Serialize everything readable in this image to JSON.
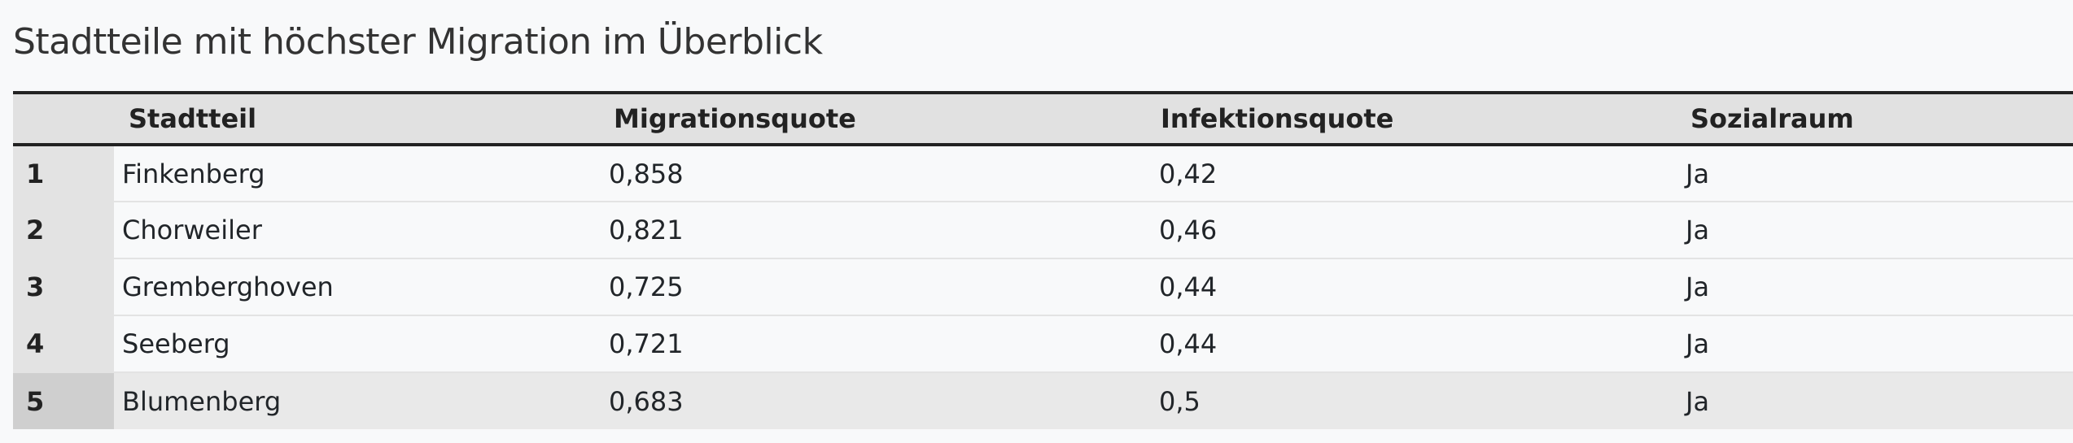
{
  "title": "Stadtteile mit höchster Migration im Überblick",
  "table": {
    "headers": [
      "",
      "Stadtteil",
      "Migrationsquote",
      "Infektionsquote",
      "Sozialraum"
    ],
    "rows": [
      {
        "rank": "1",
        "stadtteil": "Finkenberg",
        "migrationsquote": "0,858",
        "infektionsquote": "0,42",
        "sozialraum": "Ja"
      },
      {
        "rank": "2",
        "stadtteil": "Chorweiler",
        "migrationsquote": "0,821",
        "infektionsquote": "0,46",
        "sozialraum": "Ja"
      },
      {
        "rank": "3",
        "stadtteil": "Gremberghoven",
        "migrationsquote": "0,725",
        "infektionsquote": "0,44",
        "sozialraum": "Ja"
      },
      {
        "rank": "4",
        "stadtteil": "Seeberg",
        "migrationsquote": "0,721",
        "infektionsquote": "0,44",
        "sozialraum": "Ja"
      },
      {
        "rank": "5",
        "stadtteil": "Blumenberg",
        "migrationsquote": "0,683",
        "infektionsquote": "0,5",
        "sozialraum": "Ja"
      }
    ]
  }
}
